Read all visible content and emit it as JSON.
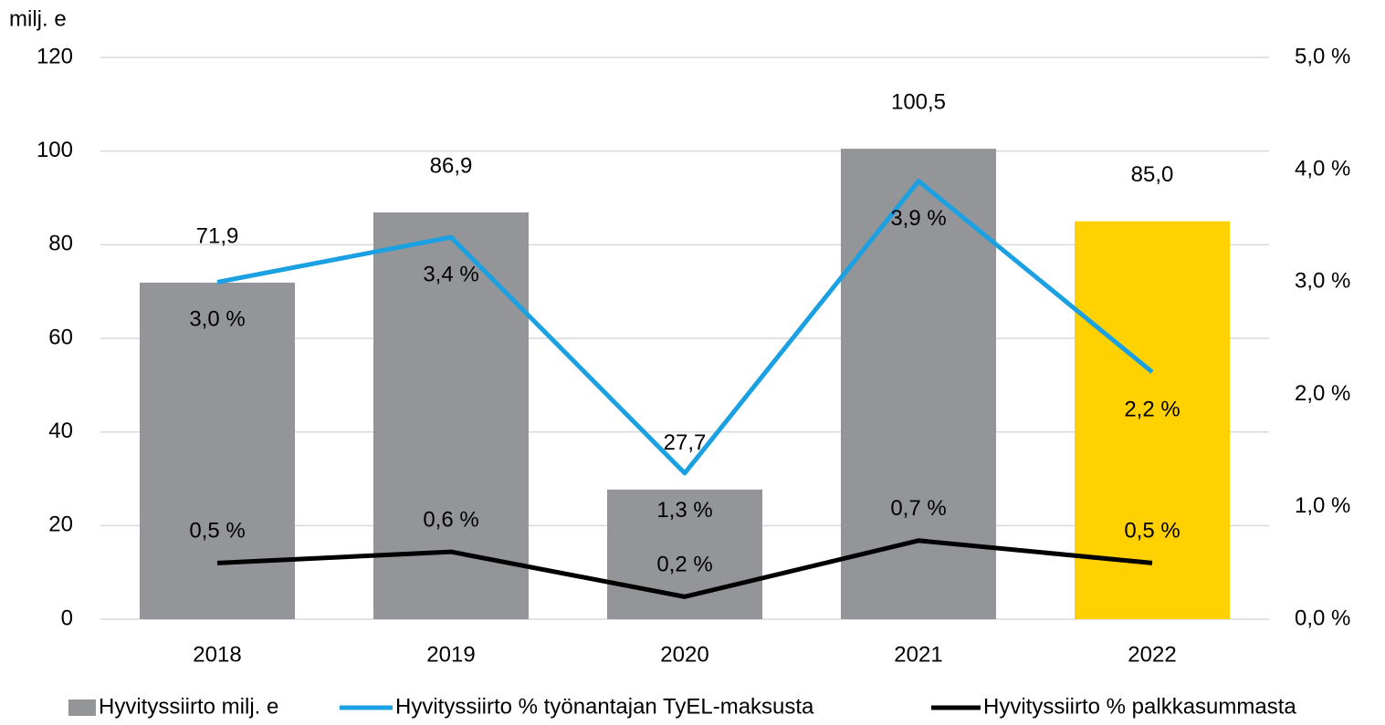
{
  "chart_data": {
    "type": "bar",
    "ylabel": "milj. e",
    "categories": [
      "2018",
      "2019",
      "2020",
      "2021",
      "2022"
    ],
    "series": [
      {
        "name": "Hyvityssiirto milj. e",
        "type": "bar",
        "colors": [
          "#939598",
          "#939598",
          "#939598",
          "#939598",
          "#ffd100"
        ],
        "values": [
          71.9,
          86.9,
          27.7,
          100.5,
          85.0
        ],
        "value_labels": [
          "71,9",
          "86,9",
          "27,7",
          "100,5",
          "85,0"
        ]
      },
      {
        "name": "Hyvityssiirto % työnantajan TyEL-maksusta",
        "type": "line",
        "color": "#1ba1e2",
        "axis": "y2",
        "values": [
          3.0,
          3.4,
          1.3,
          3.9,
          2.2
        ],
        "value_labels": [
          "3,0 %",
          "3,4 %",
          "1,3 %",
          "3,9 %",
          "2,2 %"
        ]
      },
      {
        "name": "Hyvityssiirto % palkkasummasta",
        "type": "line",
        "color": "#000000",
        "axis": "y2",
        "values": [
          0.5,
          0.6,
          0.2,
          0.7,
          0.5
        ],
        "value_labels": [
          "0,5 %",
          "0,6 %",
          "0,2 %",
          "0,7 %",
          "0,5 %"
        ]
      }
    ],
    "ylim": [
      0,
      120
    ],
    "yticks": [
      0,
      20,
      40,
      60,
      80,
      100,
      120
    ],
    "y2lim": [
      0,
      5
    ],
    "y2ticks": [
      {
        "value": 0,
        "label": "0,0 %"
      },
      {
        "value": 1,
        "label": "1,0 %"
      },
      {
        "value": 2,
        "label": "2,0 %"
      },
      {
        "value": 3,
        "label": "3,0 %"
      },
      {
        "value": 4,
        "label": "4,0 %"
      },
      {
        "value": 5,
        "label": "5,0 %"
      }
    ],
    "grid": true,
    "legend": "bottom"
  }
}
